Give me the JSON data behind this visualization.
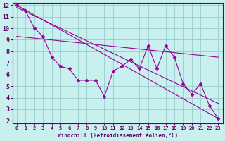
{
  "xlabel": "Windchill (Refroidissement éolien,°C)",
  "bg_color": "#c8f0ee",
  "line_color": "#990099",
  "grid_color": "#99cccc",
  "xlim": [
    -0.5,
    23.5
  ],
  "ylim": [
    1.8,
    12.2
  ],
  "xticks": [
    0,
    1,
    2,
    3,
    4,
    5,
    6,
    7,
    8,
    9,
    10,
    11,
    12,
    13,
    14,
    15,
    16,
    17,
    18,
    19,
    20,
    21,
    22,
    23
  ],
  "yticks": [
    2,
    3,
    4,
    5,
    6,
    7,
    8,
    9,
    10,
    11,
    12
  ],
  "zigzag_x": [
    0,
    1,
    2,
    3,
    4,
    5,
    6,
    7,
    8,
    9,
    10,
    11,
    12,
    13,
    14,
    15,
    16,
    17,
    18,
    19,
    20,
    21,
    22,
    23
  ],
  "zigzag_y": [
    12.0,
    11.5,
    10.0,
    9.3,
    7.5,
    6.7,
    6.5,
    5.5,
    5.5,
    5.5,
    4.1,
    6.3,
    6.7,
    7.3,
    6.5,
    8.5,
    6.5,
    8.5,
    7.5,
    5.2,
    4.3,
    5.2,
    3.3,
    2.2
  ],
  "line1_x": [
    0,
    23
  ],
  "line1_y": [
    12.0,
    2.2
  ],
  "line2_x": [
    0,
    23
  ],
  "line2_y": [
    11.8,
    3.5
  ],
  "line3_x": [
    0,
    23
  ],
  "line3_y": [
    9.3,
    7.5
  ],
  "xlabel_fontsize": 5.5,
  "tick_fontsize_x": 5,
  "tick_fontsize_y": 6,
  "spine_color": "#660066",
  "tick_color": "#660066",
  "label_color": "#660066"
}
